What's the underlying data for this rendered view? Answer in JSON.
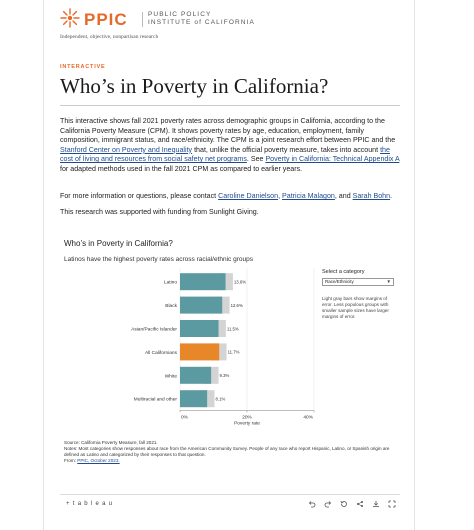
{
  "header": {
    "logo_text": "PPIC",
    "org_line1": "PUBLIC POLICY",
    "org_line2": "INSTITUTE of CALIFORNIA",
    "tagline": "Independent, objective, nonpartisan research"
  },
  "article": {
    "kicker": "INTERACTIVE",
    "title": "Who’s in Poverty in California?",
    "p1_a": "This interactive shows fall 2021 poverty rates across demographic groups in California, according to the California Poverty Measure (CPM). It shows poverty rates by age, education, employment, family composition, immigrant status, and race/ethnicity. The CPM is a joint research effort between PPIC and the ",
    "p1_link1": "Stanford Center on Poverty and Inequality",
    "p1_b": " that, unlike the official poverty measure, takes into account ",
    "p1_link2": "the cost of living and resources from social safety net programs",
    "p1_c": ". See ",
    "p1_link3": "Poverty in California: Technical Appendix A",
    "p1_d": " for adapted methods used in the fall 2021 CPM as compared to earlier years.",
    "p2_a": "For more information or questions, please contact ",
    "contact1": "Caroline Danielson",
    "sep1": ", ",
    "contact2": "Patricia Malagon",
    "sep2": ", and ",
    "contact3": "Sarah Bohn",
    "p2_end": ".",
    "p3": "This research was supported with funding from Sunlight Giving."
  },
  "viz": {
    "title": "Who’s in Poverty in California?",
    "subtitle": "Latinos have the highest poverty rates across racial/ethnic groups",
    "select_label": "Select a category",
    "select_value": "Race/Ethnicity",
    "select_note": "Light gray bars show margins of error. Less populous groups with smaller sample sizes have larger margins of error.",
    "source": "Source: California Poverty Measure, fall 2021.",
    "notes": "Notes: Most categories show responses about race from the American Community Survey. People of any race who report Hispanic, Latino, or Spanish origin are defined as Latino and categorized by their responses to that question.",
    "from_label": "From: ",
    "from_link": "PPIC, October 2023.",
    "tableau_label": "+ t a b l e a u"
  },
  "chart_data": {
    "type": "bar",
    "orientation": "horizontal",
    "categories": [
      "Latino",
      "Black",
      "Asian/Pacific Islander",
      "All Californians",
      "White",
      "Multiracial and other"
    ],
    "values": [
      13.6,
      12.6,
      11.5,
      11.7,
      9.3,
      8.1
    ],
    "value_labels": [
      "13.6%",
      "12.6%",
      "11.5%",
      "11.7%",
      "9.3%",
      "8.1%"
    ],
    "highlight_category": "All Californians",
    "xlabel": "Poverty rate",
    "xlim": [
      0,
      40
    ],
    "xticks": [
      "0%",
      "20%",
      "40%"
    ],
    "error_bars": "light gray",
    "colors": {
      "bar": "#5b9aa0",
      "highlight": "#e8862a",
      "error": "#d4d4d4"
    }
  }
}
